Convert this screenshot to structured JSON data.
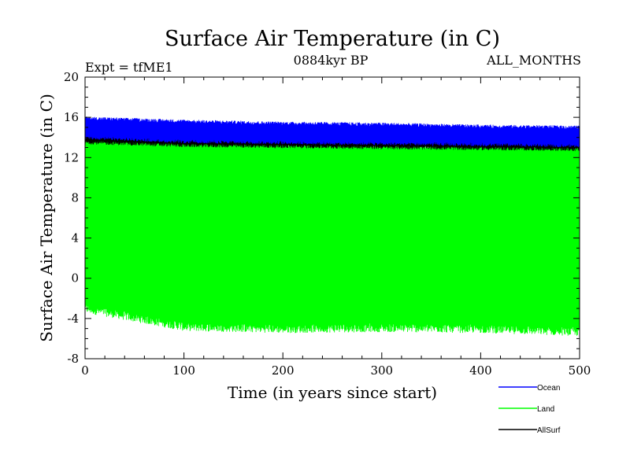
{
  "chart_data": {
    "type": "line",
    "title": "Surface Air Temperature (in C)",
    "subtitle_left": "Expt = tfME1",
    "subtitle_center": "0884kyr BP",
    "subtitle_right": "ALL_MONTHS",
    "xlabel": "Time (in years since start)",
    "ylabel": "Surface Air Temperature (in C)",
    "xlim": [
      0,
      500
    ],
    "ylim": [
      -8,
      20
    ],
    "xticks": [
      0,
      100,
      200,
      300,
      400,
      500
    ],
    "yticks": [
      -8,
      -4,
      0,
      4,
      8,
      12,
      16,
      20
    ],
    "grid": false,
    "legend_position": "bottom-right, outside plot",
    "series": [
      {
        "name": "Ocean",
        "color": "#0000ff",
        "description": "monthly values oscillating in a narrow band",
        "envelope_x": [
          0,
          100,
          200,
          300,
          400,
          500
        ],
        "envelope_low": [
          14.0,
          13.6,
          13.5,
          13.4,
          13.3,
          13.2
        ],
        "envelope_high": [
          15.9,
          15.6,
          15.4,
          15.3,
          15.1,
          15.0
        ]
      },
      {
        "name": "Land",
        "color": "#00ff00",
        "description": "monthly values with large seasonal amplitude",
        "envelope_x": [
          0,
          100,
          200,
          300,
          400,
          500
        ],
        "envelope_low": [
          -3.0,
          -4.8,
          -5.0,
          -4.9,
          -5.0,
          -5.3
        ],
        "envelope_high": [
          14.2,
          13.6,
          13.5,
          13.3,
          13.2,
          13.0
        ]
      },
      {
        "name": "AllSurf",
        "color": "#000000",
        "description": "mostly hidden beneath the Ocean band",
        "envelope_x": [
          0,
          100,
          200,
          300,
          400,
          500
        ],
        "envelope_low": [
          13.5,
          13.2,
          13.1,
          13.0,
          12.9,
          12.8
        ],
        "envelope_high": [
          14.5,
          14.2,
          14.1,
          14.0,
          13.9,
          13.8
        ]
      }
    ]
  }
}
